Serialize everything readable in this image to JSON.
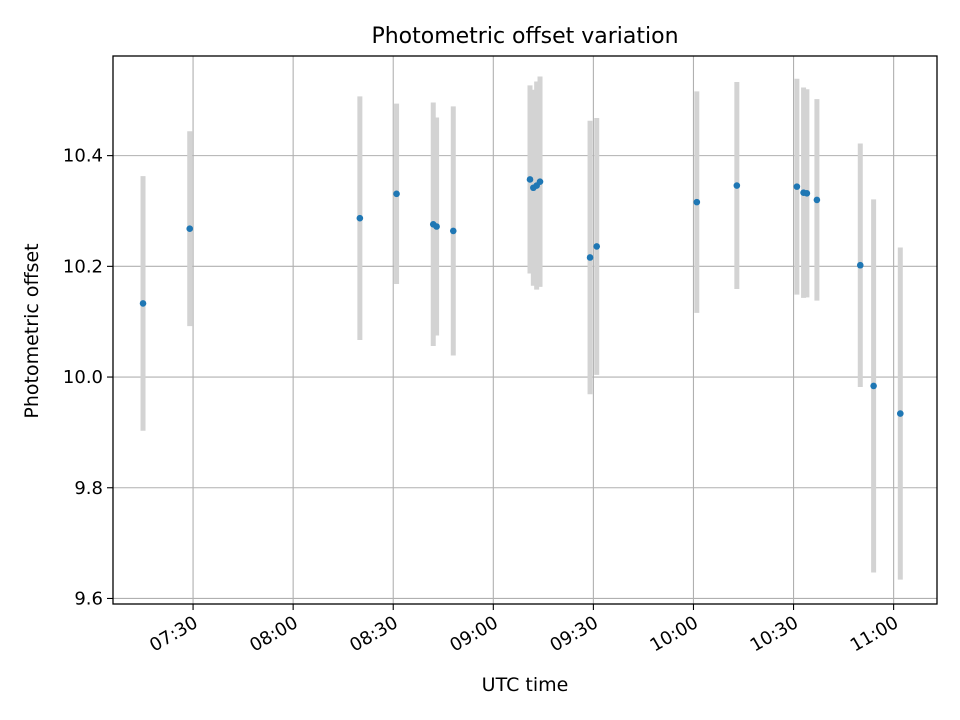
{
  "chart_data": {
    "type": "scatter",
    "title": "Photometric offset variation",
    "xlabel": "UTC time",
    "ylabel": "Photometric offset",
    "x_ticks": [
      "07:30",
      "08:00",
      "08:30",
      "09:00",
      "09:30",
      "10:00",
      "10:30",
      "11:00"
    ],
    "y_ticks": [
      "9.6",
      "9.8",
      "10.0",
      "10.2",
      "10.4"
    ],
    "xlim": [
      "07:06",
      "11:13"
    ],
    "ylim": [
      9.59,
      10.58
    ],
    "grid": true,
    "colors": {
      "point": "#1f77b4",
      "errorbar": "#d3d3d3",
      "grid": "#b0b0b0",
      "axes": "#000000"
    },
    "points": [
      {
        "x": "07:15",
        "y": 10.133,
        "err": 0.23
      },
      {
        "x": "07:29",
        "y": 10.268,
        "err": 0.176
      },
      {
        "x": "08:20",
        "y": 10.287,
        "err": 0.22
      },
      {
        "x": "08:31",
        "y": 10.331,
        "err": 0.163
      },
      {
        "x": "08:42",
        "y": 10.276,
        "err": 0.22
      },
      {
        "x": "08:43",
        "y": 10.272,
        "err": 0.197
      },
      {
        "x": "08:48",
        "y": 10.264,
        "err": 0.225
      },
      {
        "x": "09:11",
        "y": 10.357,
        "err": 0.17
      },
      {
        "x": "09:12",
        "y": 10.342,
        "err": 0.177
      },
      {
        "x": "09:13",
        "y": 10.346,
        "err": 0.188
      },
      {
        "x": "09:14",
        "y": 10.353,
        "err": 0.19
      },
      {
        "x": "09:29",
        "y": 10.216,
        "err": 0.247
      },
      {
        "x": "09:31",
        "y": 10.236,
        "err": 0.232
      },
      {
        "x": "10:01",
        "y": 10.316,
        "err": 0.2
      },
      {
        "x": "10:13",
        "y": 10.346,
        "err": 0.187
      },
      {
        "x": "10:31",
        "y": 10.344,
        "err": 0.195
      },
      {
        "x": "10:33",
        "y": 10.333,
        "err": 0.19
      },
      {
        "x": "10:34",
        "y": 10.332,
        "err": 0.188
      },
      {
        "x": "10:37",
        "y": 10.32,
        "err": 0.182
      },
      {
        "x": "10:50",
        "y": 10.202,
        "err": 0.22
      },
      {
        "x": "10:54",
        "y": 9.984,
        "err": 0.337
      },
      {
        "x": "11:02",
        "y": 9.934,
        "err": 0.3
      }
    ]
  }
}
